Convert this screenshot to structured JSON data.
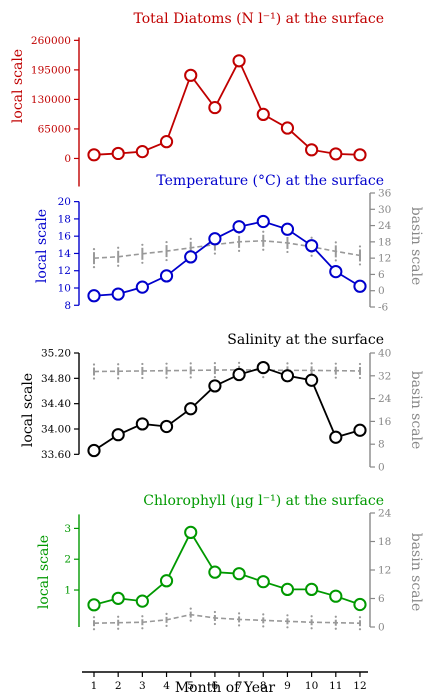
{
  "figure": {
    "x_axis_label": "Month of Year",
    "x_tick_labels": [
      "1",
      "2",
      "3",
      "4",
      "5",
      "6",
      "7",
      "8",
      "9",
      "10",
      "11",
      "12"
    ],
    "local_axis_label": "local scale",
    "basin_axis_label": "basin scale",
    "colors": {
      "diatoms": "#c00000",
      "temperature": "#0000cc",
      "salinity": "#000000",
      "chlorophyll": "#009900",
      "basin": "#999999"
    }
  },
  "chart_data": [
    {
      "type": "line",
      "id": "diatoms",
      "title": "Total Diatoms (N l⁻¹) at the surface",
      "ylabel": "local scale",
      "x": [
        1,
        2,
        3,
        4,
        5,
        6,
        7,
        8,
        9,
        10,
        11,
        12
      ],
      "ylim": [
        -10000,
        285000
      ],
      "yticks": [
        0,
        65000,
        130000,
        195000,
        260000
      ],
      "ytick_labels": [
        "0",
        "65000",
        "130000",
        "195000",
        "260000"
      ],
      "series": [
        {
          "values": [
            8000,
            11000,
            15000,
            37000,
            183000,
            112000,
            215000,
            97000,
            67000,
            19000,
            10000,
            8000
          ]
        }
      ]
    },
    {
      "type": "line",
      "id": "temperature",
      "title": "Temperature (°C) at the surface",
      "ylabel": "local scale",
      "ylabel_right": "basin scale",
      "x": [
        1,
        2,
        3,
        4,
        5,
        6,
        7,
        8,
        9,
        10,
        11,
        12
      ],
      "ylim": [
        7.8,
        21.0
      ],
      "yticks": [
        8,
        10,
        12,
        14,
        16,
        18,
        20
      ],
      "ytick_labels": [
        "8",
        "10",
        "12",
        "14",
        "16",
        "18",
        "20"
      ],
      "ylim_right": [
        -6,
        36
      ],
      "yticks_right": [
        -6,
        0,
        6,
        12,
        18,
        24,
        30,
        36
      ],
      "ytick_labels_right": [
        "-6",
        "0",
        "6",
        "12",
        "18",
        "24",
        "30",
        "36"
      ],
      "series": [
        {
          "values": [
            9.1,
            9.3,
            10.1,
            11.4,
            13.6,
            15.7,
            17.1,
            17.7,
            16.8,
            14.9,
            11.9,
            10.2
          ]
        },
        {
          "axis": "right",
          "style": "dashed",
          "values": [
            12.0,
            12.5,
            13.6,
            14.6,
            15.8,
            17.0,
            18.0,
            18.4,
            17.6,
            16.2,
            14.5,
            13.0
          ]
        }
      ]
    },
    {
      "type": "line",
      "id": "salinity",
      "title": "Salinity at the surface",
      "ylabel": "local scale",
      "ylabel_right": "basin scale",
      "x": [
        1,
        2,
        3,
        4,
        5,
        6,
        7,
        8,
        9,
        10,
        11,
        12
      ],
      "ylim": [
        33.4,
        35.2
      ],
      "yticks": [
        33.6,
        34.0,
        34.4,
        34.8,
        35.2
      ],
      "ytick_labels": [
        "33.60",
        "34.00",
        "34.40",
        "34.80",
        "35.20"
      ],
      "ylim_right": [
        0,
        40
      ],
      "yticks_right": [
        0,
        8,
        16,
        24,
        32,
        40
      ],
      "ytick_labels_right": [
        "0",
        "8",
        "16",
        "24",
        "32",
        "40"
      ],
      "series": [
        {
          "values": [
            33.66,
            33.91,
            34.08,
            34.04,
            34.32,
            34.68,
            34.86,
            34.97,
            34.84,
            34.77,
            33.87,
            33.98
          ]
        },
        {
          "axis": "right",
          "style": "dashed",
          "values": [
            33.5,
            33.6,
            33.7,
            33.8,
            33.9,
            34.0,
            34.1,
            34.0,
            33.9,
            33.9,
            33.8,
            33.7
          ]
        }
      ]
    },
    {
      "type": "line",
      "id": "chlorophyll",
      "title": "Chlorophyll (µg l⁻¹) at the surface",
      "ylabel": "local scale",
      "ylabel_right": "basin scale",
      "x": [
        1,
        2,
        3,
        4,
        5,
        6,
        7,
        8,
        9,
        10,
        11,
        12
      ],
      "ylim": [
        -0.2,
        3.5
      ],
      "yticks": [
        1,
        2,
        3
      ],
      "ytick_labels": [
        "1",
        "2",
        "3"
      ],
      "ylim_right": [
        0,
        24
      ],
      "yticks_right": [
        0,
        6,
        12,
        18,
        24
      ],
      "ytick_labels_right": [
        "0",
        "6",
        "12",
        "18",
        "24"
      ],
      "series": [
        {
          "values": [
            0.52,
            0.73,
            0.64,
            1.3,
            2.87,
            1.58,
            1.53,
            1.27,
            1.02,
            1.02,
            0.8,
            0.53
          ]
        },
        {
          "axis": "right",
          "style": "dashed",
          "values": [
            0.8,
            0.9,
            1.0,
            1.5,
            2.6,
            1.9,
            1.6,
            1.4,
            1.2,
            1.0,
            0.9,
            0.8
          ]
        }
      ]
    }
  ]
}
